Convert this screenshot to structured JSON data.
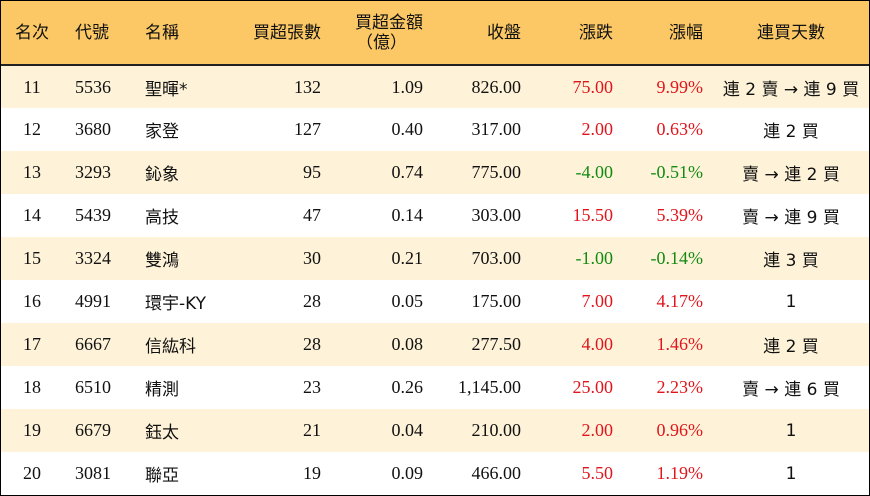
{
  "headers": {
    "rank": "名次",
    "code": "代號",
    "name": "名稱",
    "net_lots": "買超張數",
    "net_amount_line1": "買超金額",
    "net_amount_line2": "（億）",
    "close": "收盤",
    "change": "漲跌",
    "pct": "漲幅",
    "streak": "連買天數"
  },
  "colors": {
    "header_bg": "#fbc865",
    "stripe_bg": "#fef3d9",
    "up": "#e0161c",
    "down": "#128a12"
  },
  "rows": [
    {
      "rank": "11",
      "code": "5536",
      "name": "聖暉*",
      "net_lots": "132",
      "net_amount": "1.09",
      "close": "826.00",
      "change": "75.00",
      "pct": "9.99%",
      "dir": "up",
      "streak": "連 2 賣 → 連 9 買"
    },
    {
      "rank": "12",
      "code": "3680",
      "name": "家登",
      "net_lots": "127",
      "net_amount": "0.40",
      "close": "317.00",
      "change": "2.00",
      "pct": "0.63%",
      "dir": "up",
      "streak": "連 2 買"
    },
    {
      "rank": "13",
      "code": "3293",
      "name": "鈊象",
      "net_lots": "95",
      "net_amount": "0.74",
      "close": "775.00",
      "change": "-4.00",
      "pct": "-0.51%",
      "dir": "down",
      "streak": "賣 → 連 2 買"
    },
    {
      "rank": "14",
      "code": "5439",
      "name": "高技",
      "net_lots": "47",
      "net_amount": "0.14",
      "close": "303.00",
      "change": "15.50",
      "pct": "5.39%",
      "dir": "up",
      "streak": "賣 → 連 9 買"
    },
    {
      "rank": "15",
      "code": "3324",
      "name": "雙鴻",
      "net_lots": "30",
      "net_amount": "0.21",
      "close": "703.00",
      "change": "-1.00",
      "pct": "-0.14%",
      "dir": "down",
      "streak": "連 3 買"
    },
    {
      "rank": "16",
      "code": "4991",
      "name": "環宇-KY",
      "net_lots": "28",
      "net_amount": "0.05",
      "close": "175.00",
      "change": "7.00",
      "pct": "4.17%",
      "dir": "up",
      "streak": "1"
    },
    {
      "rank": "17",
      "code": "6667",
      "name": "信紘科",
      "net_lots": "28",
      "net_amount": "0.08",
      "close": "277.50",
      "change": "4.00",
      "pct": "1.46%",
      "dir": "up",
      "streak": "連 2 買"
    },
    {
      "rank": "18",
      "code": "6510",
      "name": "精測",
      "net_lots": "23",
      "net_amount": "0.26",
      "close": "1,145.00",
      "change": "25.00",
      "pct": "2.23%",
      "dir": "up",
      "streak": "賣 → 連 6 買"
    },
    {
      "rank": "19",
      "code": "6679",
      "name": "鈺太",
      "net_lots": "21",
      "net_amount": "0.04",
      "close": "210.00",
      "change": "2.00",
      "pct": "0.96%",
      "dir": "up",
      "streak": "1"
    },
    {
      "rank": "20",
      "code": "3081",
      "name": "聯亞",
      "net_lots": "19",
      "net_amount": "0.09",
      "close": "466.00",
      "change": "5.50",
      "pct": "1.19%",
      "dir": "up",
      "streak": "1"
    }
  ]
}
